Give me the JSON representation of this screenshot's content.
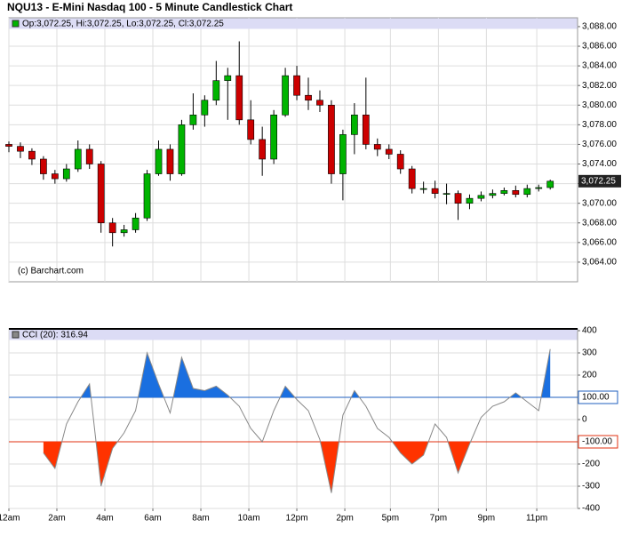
{
  "title": "NQU13 - E-Mini Nasdaq 100 - 5 Minute Candlestick Chart",
  "chart_data": [
    {
      "type": "candlestick",
      "legend": "Op:3,072.25, Hi:3,072.25, Lo:3,072.25, Cl:3,072.25",
      "annotation": "(c) Barchart.com",
      "up_color": "#00b400",
      "down_color": "#cc0000",
      "x": [
        0,
        0.48,
        0.96,
        1.44,
        1.92,
        2.4,
        2.88,
        3.36,
        3.84,
        4.32,
        4.8,
        5.28,
        5.76,
        6.24,
        6.72,
        7.2,
        7.68,
        8.16,
        8.64,
        9.12,
        9.6,
        10.08,
        10.56,
        11.04,
        11.52,
        12,
        12.48,
        12.96,
        13.44,
        13.92,
        14.4,
        14.88,
        15.36,
        15.84,
        16.32,
        16.8,
        17.28,
        17.76,
        18.24,
        18.72,
        19.2,
        19.68,
        20.16,
        20.64,
        21.12,
        21.6,
        22.08,
        22.56
      ],
      "open": [
        3076.0,
        3075.8,
        3075.3,
        3074.5,
        3073.0,
        3072.5,
        3073.5,
        3075.5,
        3074.0,
        3068.0,
        3067.0,
        3067.3,
        3068.5,
        3073.0,
        3075.5,
        3073.0,
        3078.0,
        3079.0,
        3080.5,
        3082.5,
        3083.0,
        3078.5,
        3076.5,
        3074.5,
        3079.0,
        3083.0,
        3081.0,
        3080.5,
        3080.0,
        3073.0,
        3077.0,
        3079.0,
        3076.0,
        3075.5,
        3075.0,
        3073.5,
        3071.5,
        3071.5,
        3071.0,
        3071.0,
        3070.0,
        3070.5,
        3070.8,
        3071.0,
        3071.3,
        3070.9,
        3071.5,
        3071.6
      ],
      "high": [
        3076.3,
        3076.2,
        3075.6,
        3074.8,
        3073.4,
        3074.0,
        3076.4,
        3076.0,
        3074.3,
        3068.5,
        3067.8,
        3069.0,
        3073.4,
        3076.4,
        3076.0,
        3078.5,
        3081.2,
        3081.0,
        3084.5,
        3083.8,
        3086.5,
        3080.5,
        3077.8,
        3079.5,
        3083.8,
        3084.0,
        3082.8,
        3081.5,
        3080.5,
        3077.5,
        3080.2,
        3082.8,
        3076.6,
        3076.0,
        3075.4,
        3073.8,
        3072.2,
        3072.3,
        3072.0,
        3071.3,
        3070.9,
        3071.2,
        3071.4,
        3071.6,
        3071.8,
        3071.9,
        3071.9,
        3072.4
      ],
      "low": [
        3075.2,
        3074.6,
        3073.9,
        3072.4,
        3072.0,
        3072.2,
        3073.2,
        3073.5,
        3067.0,
        3065.6,
        3066.6,
        3067.0,
        3068.2,
        3072.8,
        3072.3,
        3072.8,
        3077.5,
        3077.8,
        3080.0,
        3078.5,
        3078.0,
        3076.0,
        3072.8,
        3074.0,
        3078.8,
        3080.5,
        3079.5,
        3079.3,
        3072.0,
        3070.3,
        3075.0,
        3075.5,
        3074.8,
        3074.5,
        3073.0,
        3071.0,
        3071.0,
        3070.5,
        3069.9,
        3068.3,
        3069.4,
        3070.2,
        3070.5,
        3070.8,
        3070.6,
        3070.6,
        3071.2,
        3071.4
      ],
      "close": [
        3075.8,
        3075.3,
        3074.5,
        3073.0,
        3072.5,
        3073.5,
        3075.5,
        3074.0,
        3068.0,
        3067.0,
        3067.3,
        3068.5,
        3073.0,
        3075.5,
        3073.0,
        3078.0,
        3079.0,
        3080.5,
        3082.5,
        3083.0,
        3078.5,
        3076.5,
        3074.5,
        3079.0,
        3083.0,
        3081.0,
        3080.5,
        3080.0,
        3073.0,
        3077.0,
        3079.0,
        3076.0,
        3075.5,
        3075.0,
        3073.5,
        3071.5,
        3071.5,
        3071.0,
        3071.0,
        3070.0,
        3070.5,
        3070.8,
        3071.0,
        3071.3,
        3070.9,
        3071.5,
        3071.6,
        3072.25
      ],
      "last_price": {
        "value": 3072.25,
        "label": "3,072.25"
      },
      "xlim": [
        0,
        23.7
      ],
      "ylim": [
        3062,
        3088.9
      ],
      "yticks": [
        {
          "value": 3064,
          "label": "3,064.00"
        },
        {
          "value": 3066,
          "label": "3,066.00"
        },
        {
          "value": 3068,
          "label": "3,068.00"
        },
        {
          "value": 3070,
          "label": "3,070.00"
        },
        {
          "value": 3072,
          "label": "3,072.00"
        },
        {
          "value": 3074,
          "label": "3,074.00"
        },
        {
          "value": 3076,
          "label": "3,076.00"
        },
        {
          "value": 3078,
          "label": "3,078.00"
        },
        {
          "value": 3080,
          "label": "3,080.00"
        },
        {
          "value": 3082,
          "label": "3,082.00"
        },
        {
          "value": 3084,
          "label": "3,084.00"
        },
        {
          "value": 3086,
          "label": "3,086.00"
        },
        {
          "value": 3088,
          "label": "3,088.00"
        }
      ],
      "grid": true
    },
    {
      "type": "line",
      "legend": "CCI (20): 316.94",
      "color": "#888888",
      "above_color": "#1a6fe0",
      "below_color": "#ff3300",
      "x": [
        0,
        0.48,
        0.96,
        1.44,
        1.92,
        2.4,
        2.88,
        3.36,
        3.84,
        4.32,
        4.8,
        5.28,
        5.76,
        6.24,
        6.72,
        7.2,
        7.68,
        8.16,
        8.64,
        9.12,
        9.6,
        10.08,
        10.56,
        11.04,
        11.52,
        12,
        12.48,
        12.96,
        13.44,
        13.92,
        14.4,
        14.88,
        15.36,
        15.84,
        16.32,
        16.8,
        17.28,
        17.76,
        18.24,
        18.72,
        19.2,
        19.68,
        20.16,
        20.64,
        21.12,
        21.6,
        22.08,
        22.56
      ],
      "values": [
        null,
        null,
        null,
        -150,
        -220,
        -20,
        80,
        160,
        -300,
        -130,
        -60,
        40,
        300,
        160,
        30,
        280,
        140,
        130,
        150,
        110,
        60,
        -40,
        -100,
        40,
        150,
        90,
        40,
        -90,
        -330,
        20,
        130,
        60,
        -40,
        -80,
        -150,
        -200,
        -160,
        -20,
        -80,
        -240,
        -110,
        10,
        60,
        80,
        120,
        80,
        40,
        316.94
      ],
      "levels": [
        {
          "value": 100,
          "label": "100.00",
          "color": "#1f5fbf"
        },
        {
          "value": -100,
          "label": "-100.00",
          "color": "#e03010"
        }
      ],
      "xlim": [
        0,
        23.7
      ],
      "ylim": [
        -400,
        408
      ],
      "yticks": [
        -400,
        -300,
        -200,
        0,
        200,
        300,
        400
      ],
      "xticks": [
        {
          "value": 0,
          "label": "12am"
        },
        {
          "value": 2,
          "label": "2am"
        },
        {
          "value": 4,
          "label": "4am"
        },
        {
          "value": 6,
          "label": "6am"
        },
        {
          "value": 8,
          "label": "8am"
        },
        {
          "value": 10,
          "label": "10am"
        },
        {
          "value": 12,
          "label": "12pm"
        },
        {
          "value": 14,
          "label": "2pm"
        },
        {
          "value": 15.9,
          "label": "5pm"
        },
        {
          "value": 17.9,
          "label": "7pm"
        },
        {
          "value": 19.9,
          "label": "9pm"
        },
        {
          "value": 22,
          "label": "11pm"
        }
      ],
      "grid": true
    }
  ]
}
